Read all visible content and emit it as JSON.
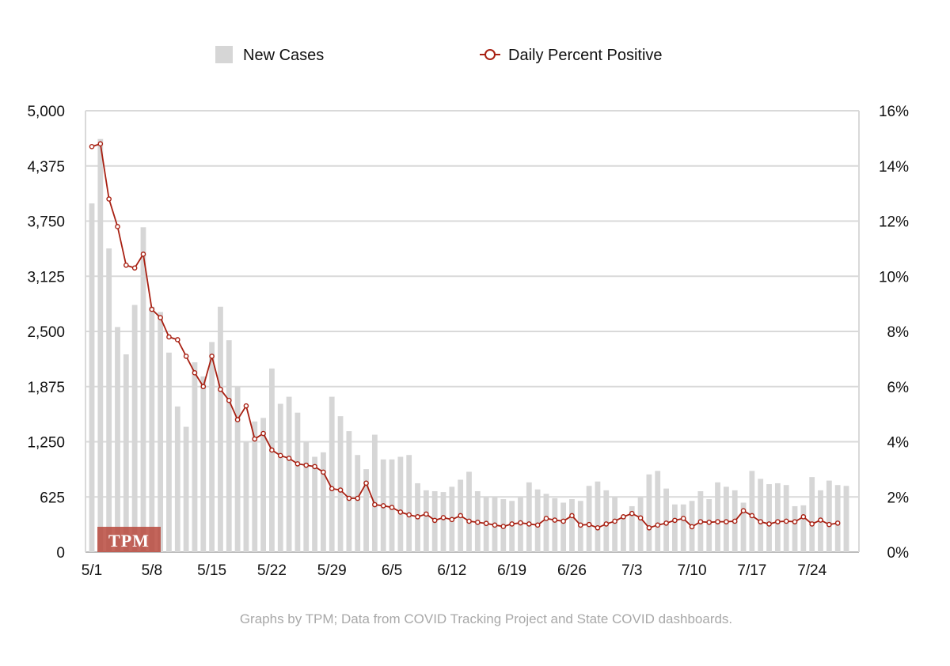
{
  "chart_data": {
    "type": "bar+line",
    "x_start_label": "5/1",
    "x_tick_labels": [
      "5/1",
      "5/8",
      "5/15",
      "5/22",
      "5/29",
      "6/5",
      "6/12",
      "6/19",
      "6/26",
      "7/3",
      "7/10",
      "7/17",
      "7/24"
    ],
    "x_tick_every": 7,
    "left_axis": {
      "ylim": [
        0,
        5000
      ],
      "ticks": [
        0,
        625,
        1250,
        1875,
        2500,
        3125,
        3750,
        4375,
        5000
      ],
      "tick_labels": [
        "0",
        "625",
        "1,250",
        "1,875",
        "2,500",
        "3,125",
        "3,750",
        "4,375",
        "5,000"
      ]
    },
    "right_axis": {
      "ylim": [
        0,
        16
      ],
      "ticks": [
        0,
        2,
        4,
        6,
        8,
        10,
        12,
        14,
        16
      ],
      "tick_labels": [
        "0%",
        "2%",
        "4%",
        "6%",
        "8%",
        "10%",
        "12%",
        "14%",
        "16%"
      ]
    },
    "series": [
      {
        "name": "New Cases",
        "kind": "bar",
        "axis": "left",
        "color": "#d6d6d6",
        "values": [
          3950,
          4680,
          3440,
          2550,
          2240,
          2800,
          3680,
          2780,
          2720,
          2260,
          1650,
          1420,
          2150,
          1990,
          2380,
          2780,
          2400,
          1870,
          1250,
          1480,
          1520,
          2080,
          1680,
          1760,
          1580,
          1250,
          1080,
          1130,
          1760,
          1540,
          1370,
          1100,
          940,
          1330,
          1050,
          1050,
          1080,
          1100,
          780,
          700,
          690,
          680,
          740,
          820,
          910,
          690,
          620,
          620,
          600,
          580,
          620,
          790,
          710,
          660,
          610,
          560,
          600,
          580,
          750,
          800,
          700,
          620,
          400,
          520,
          620,
          880,
          920,
          720,
          540,
          540,
          580,
          690,
          600,
          790,
          740,
          700,
          560,
          920,
          830,
          770,
          780,
          760,
          520,
          530,
          850,
          700,
          810,
          760,
          750
        ],
        "value_labels": {
          "label": "New Cases"
        }
      },
      {
        "name": "Daily Percent Positive",
        "kind": "line",
        "axis": "right",
        "color": "#a82012",
        "values": [
          14.7,
          14.8,
          12.8,
          11.8,
          10.4,
          10.3,
          10.8,
          8.8,
          8.5,
          7.8,
          7.7,
          7.1,
          6.5,
          6.0,
          7.1,
          5.9,
          5.5,
          4.8,
          5.3,
          4.1,
          4.3,
          3.7,
          3.5,
          3.4,
          3.2,
          3.15,
          3.1,
          2.9,
          2.3,
          2.25,
          1.95,
          1.95,
          2.5,
          1.72,
          1.68,
          1.62,
          1.45,
          1.35,
          1.28,
          1.38,
          1.15,
          1.25,
          1.18,
          1.32,
          1.12,
          1.08,
          1.04,
          0.98,
          0.93,
          1.02,
          1.06,
          1.02,
          0.98,
          1.22,
          1.16,
          1.12,
          1.32,
          0.98,
          1.0,
          0.88,
          1.02,
          1.12,
          1.28,
          1.4,
          1.24,
          0.88,
          0.98,
          1.05,
          1.15,
          1.22,
          0.92,
          1.1,
          1.08,
          1.1,
          1.1,
          1.12,
          1.5,
          1.32,
          1.1,
          1.02,
          1.1,
          1.12,
          1.1,
          1.28,
          1.02,
          1.16,
          1.0,
          1.05
        ]
      }
    ],
    "legend": [
      "New Cases",
      "Daily Percent Positive"
    ],
    "legend_position": "top-center",
    "grid": true,
    "watermark": "TPM",
    "source_note": "Graphs by TPM; Data from COVID Tracking Project and State COVID dashboards."
  },
  "legend": {
    "cases_label": "New Cases",
    "positive_label": "Daily Percent Positive"
  },
  "watermark": "TPM",
  "source_note": "Graphs by TPM; Data from COVID Tracking Project and State COVID dashboards."
}
